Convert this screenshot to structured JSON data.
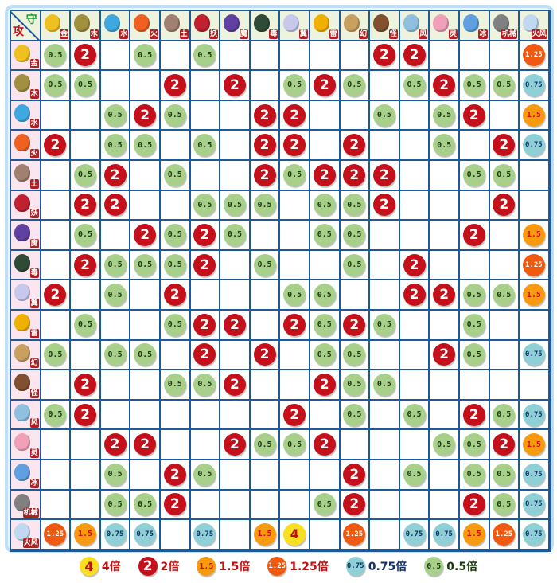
{
  "chart_data": {
    "type": "table",
    "corner": {
      "defend": "守",
      "attack": "攻"
    },
    "columns": [
      "金",
      "木",
      "水",
      "火",
      "土",
      "妖",
      "魔",
      "毒",
      "翼",
      "雷",
      "幻",
      "怪",
      "风",
      "灵",
      "冰",
      "机械",
      "火风"
    ],
    "type_colors": [
      "#f0c020",
      "#a09040",
      "#40a8e0",
      "#f06020",
      "#a08070",
      "#c02030",
      "#6040a0",
      "#304a38",
      "#c8c8ec",
      "#f0b000",
      "#c8a060",
      "#805030",
      "#90c0e0",
      "#f0a0b8",
      "#60a0e0",
      "#808080",
      "#c0d8f0"
    ],
    "rows": [
      {
        "label": "金",
        "values": [
          "0.5",
          "2",
          "",
          "0.5",
          "",
          "0.5",
          "",
          "",
          "",
          "",
          "",
          "2",
          "2",
          "",
          "",
          "",
          "1.25"
        ]
      },
      {
        "label": "木",
        "values": [
          "0.5",
          "0.5",
          "",
          "",
          "2",
          "",
          "2",
          "",
          "0.5",
          "2",
          "0.5",
          "",
          "0.5",
          "2",
          "0.5",
          "0.5",
          "0.75"
        ]
      },
      {
        "label": "水",
        "values": [
          "",
          "",
          "0.5",
          "2",
          "0.5",
          "",
          "",
          "2",
          "2",
          "",
          "",
          "0.5",
          "",
          "0.5",
          "2",
          "",
          "1.5"
        ]
      },
      {
        "label": "火",
        "values": [
          "2",
          "",
          "0.5",
          "0.5",
          "",
          "0.5",
          "",
          "2",
          "2",
          "",
          "2",
          "",
          "",
          "0.5",
          "",
          "2",
          "0.75"
        ]
      },
      {
        "label": "土",
        "values": [
          "",
          "0.5",
          "2",
          "",
          "0.5",
          "",
          "",
          "2",
          "0.5",
          "2",
          "2",
          "2",
          "",
          "",
          "0.5",
          "0.5",
          ""
        ]
      },
      {
        "label": "妖",
        "values": [
          "",
          "2",
          "2",
          "",
          "",
          "0.5",
          "0.5",
          "0.5",
          "",
          "0.5",
          "0.5",
          "2",
          "",
          "",
          "",
          "2",
          ""
        ]
      },
      {
        "label": "魔",
        "values": [
          "",
          "0.5",
          "",
          "2",
          "0.5",
          "2",
          "0.5",
          "",
          "",
          "0.5",
          "0.5",
          "",
          "",
          "",
          "2",
          "",
          "1.5"
        ]
      },
      {
        "label": "毒",
        "values": [
          "",
          "2",
          "0.5",
          "0.5",
          "0.5",
          "2",
          "",
          "0.5",
          "",
          "",
          "0.5",
          "",
          "2",
          "",
          "",
          "",
          "1.25"
        ]
      },
      {
        "label": "翼",
        "values": [
          "2",
          "",
          "0.5",
          "",
          "2",
          "",
          "",
          "",
          "0.5",
          "0.5",
          "",
          "",
          "2",
          "2",
          "0.5",
          "0.5",
          "1.5"
        ]
      },
      {
        "label": "雷",
        "values": [
          "",
          "0.5",
          "",
          "",
          "0.5",
          "2",
          "2",
          "",
          "2",
          "0.5",
          "2",
          "0.5",
          "",
          "",
          "0.5",
          "",
          ""
        ]
      },
      {
        "label": "幻",
        "values": [
          "0.5",
          "",
          "0.5",
          "0.5",
          "",
          "2",
          "",
          "2",
          "",
          "0.5",
          "0.5",
          "",
          "",
          "2",
          "0.5",
          "",
          "0.75"
        ]
      },
      {
        "label": "怪",
        "values": [
          "",
          "2",
          "",
          "",
          "0.5",
          "0.5",
          "2",
          "",
          "",
          "2",
          "0.5",
          "0.5",
          "",
          "",
          "",
          "",
          ""
        ]
      },
      {
        "label": "风",
        "values": [
          "0.5",
          "2",
          "",
          "",
          "",
          "",
          "",
          "",
          "2",
          "",
          "0.5",
          "",
          "0.5",
          "",
          "2",
          "0.5",
          "0.75"
        ]
      },
      {
        "label": "灵",
        "values": [
          "",
          "",
          "2",
          "2",
          "",
          "",
          "2",
          "0.5",
          "0.5",
          "2",
          "",
          "",
          "",
          "0.5",
          "0.5",
          "2",
          "1.5"
        ]
      },
      {
        "label": "冰",
        "values": [
          "",
          "",
          "0.5",
          "",
          "2",
          "0.5",
          "",
          "",
          "",
          "",
          "2",
          "",
          "0.5",
          "",
          "0.5",
          "0.5",
          "0.75"
        ]
      },
      {
        "label": "机械",
        "values": [
          "",
          "",
          "0.5",
          "0.5",
          "2",
          "",
          "",
          "",
          "",
          "0.5",
          "2",
          "",
          "",
          "",
          "2",
          "0.5",
          "0.75"
        ]
      },
      {
        "label": "火风",
        "values": [
          "1.25",
          "1.5",
          "0.75",
          "0.75",
          "",
          "0.75",
          "",
          "1.5",
          "4",
          "",
          "1.25",
          "",
          "0.75",
          "0.75",
          "1.5",
          "1.25",
          "0.75"
        ]
      }
    ],
    "legend": [
      {
        "value": "4",
        "label": "4倍",
        "color": "#c01010"
      },
      {
        "value": "2",
        "label": "2倍",
        "color": "#c01010"
      },
      {
        "value": "1.5",
        "label": "1.5倍",
        "color": "#c01010"
      },
      {
        "value": "1.25",
        "label": "1.25倍",
        "color": "#c01010"
      },
      {
        "value": "0.75",
        "label": "0.75倍",
        "color": "#12306a"
      },
      {
        "value": "0.5",
        "label": "0.5倍",
        "color": "#1c3a10"
      }
    ],
    "badge_colors": {
      "4": "#f8e020",
      "2": "#c4101a",
      "1.5": "#f89a10",
      "1.25": "#f05a10",
      "0.75": "#8fd0d6",
      "0.5": "#a8d08a"
    }
  }
}
